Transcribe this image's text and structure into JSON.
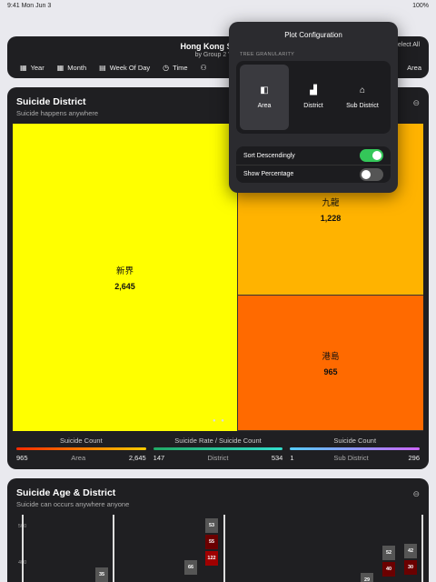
{
  "status": {
    "left": "9:41  Mon Jun 3",
    "right": "100%"
  },
  "header": {
    "title": "Hong Kong Suicide",
    "subtitle": "by Group 2 VisS",
    "right_label": "Select All",
    "toolbar": [
      {
        "icon": "calendar-icon",
        "glyph": "▦",
        "label": "Year"
      },
      {
        "icon": "calendar-icon",
        "glyph": "▦",
        "label": "Month"
      },
      {
        "icon": "calendar-week-icon",
        "glyph": "▤",
        "label": "Week Of Day"
      },
      {
        "icon": "clock-icon",
        "glyph": "◷",
        "label": "Time"
      },
      {
        "icon": "people-icon",
        "glyph": "⚇",
        "label": ""
      }
    ],
    "toolbar_right": "Area"
  },
  "card1": {
    "title": "Suicide District",
    "subtitle": "Suicide happens anywhere",
    "menu_glyph": "⊖"
  },
  "chart_data": {
    "type": "treemap",
    "items": [
      {
        "name": "新界",
        "value": 2645,
        "label": "2,645",
        "color": "#ffff00"
      },
      {
        "name": "九龍",
        "value": 1228,
        "label": "1,228",
        "color": "#ffb300"
      },
      {
        "name": "港島",
        "value": 965,
        "label": "965",
        "color": "#ff6a00"
      }
    ]
  },
  "legends": [
    {
      "title": "Suicide Count",
      "min": "965",
      "mid": "Area",
      "max": "2,645"
    },
    {
      "title": "Suicide Rate / Suicide Count",
      "min": "147",
      "mid": "District",
      "max": "534"
    },
    {
      "title": "Suicide Count",
      "min": "1",
      "mid": "Sub District",
      "max": "296"
    }
  ],
  "legend_colors": {
    "a": [
      "#ff2a00",
      "#ffcc00"
    ],
    "b": [
      "#22aa66",
      "#33ddcc"
    ],
    "c": [
      "#55ccff",
      "#cc66ff"
    ]
  },
  "card2": {
    "title": "Suicide Age & District",
    "subtitle": "Suicide can occurs anywhere anyone",
    "menu_glyph": "⊖",
    "yticks": [
      "500",
      "400"
    ],
    "stacks": [
      {
        "values": [
          "35"
        ]
      },
      {
        "values": [
          "66"
        ]
      },
      {
        "values": [
          "53",
          "55",
          "122"
        ]
      },
      {
        "values": [
          "29"
        ]
      },
      {
        "values": [
          "52",
          "40"
        ]
      },
      {
        "values": [
          "42",
          "30"
        ]
      }
    ]
  },
  "popover": {
    "title": "Plot Configuration",
    "section": "TREE GRANULARITY",
    "options": [
      {
        "icon": "map-icon",
        "glyph": "◧",
        "label": "Area"
      },
      {
        "icon": "buildings-icon",
        "glyph": "▟",
        "label": "District"
      },
      {
        "icon": "house-icon",
        "glyph": "⌂",
        "label": "Sub District"
      }
    ],
    "sort_label": "Sort Descendingly",
    "percent_label": "Show Percentage",
    "sort_on": true,
    "percent_on": false,
    "toggle_on_color": "#34c759"
  }
}
